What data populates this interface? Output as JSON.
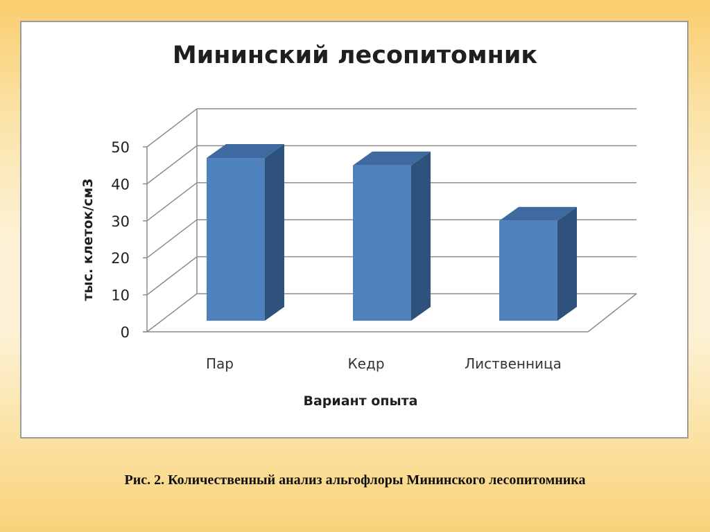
{
  "chart_data": {
    "type": "bar",
    "title": "Мининский лесопитомник",
    "xlabel": "Вариант опыта",
    "ylabel": "тыс. клеток/см3",
    "categories": [
      "Пар",
      "Кедр",
      "Лиственница"
    ],
    "values": [
      47,
      45,
      30
    ],
    "ylim": [
      0,
      50
    ],
    "yticks": [
      "0",
      "10",
      "20",
      "30",
      "40",
      "50"
    ],
    "grid": true,
    "style": "3d-column",
    "colors": {
      "bar_front": "#4f81bd",
      "bar_side": "#2f527d",
      "bar_top": "#3e6aa0",
      "grid": "#8c8c8c"
    }
  },
  "caption": "Рис. 2.  Количественный анализ альгофлоры Мининского лесопитомника"
}
